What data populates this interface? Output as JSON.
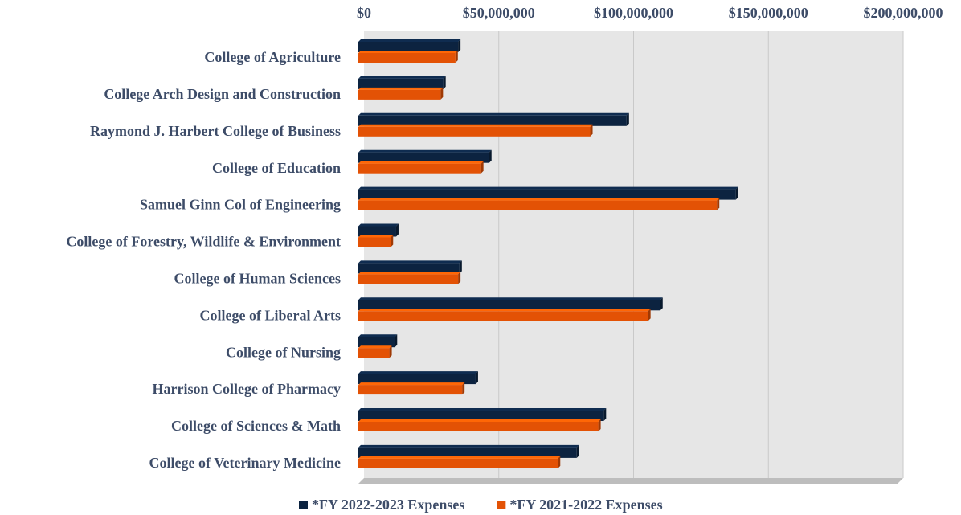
{
  "chart_data": {
    "type": "bar",
    "orientation": "horizontal",
    "categories": [
      "College of Agriculture",
      "College Arch Design and Construction",
      "Raymond J. Harbert College of Business",
      "College of Education",
      "Samuel Ginn Col of Engineering",
      "College of Forestry, Wildlife & Environment",
      "College of Human Sciences",
      "College of Liberal Arts",
      "College of Nursing",
      "Harrison College of Pharmacy",
      "College of Sciences & Math",
      "College of Veterinary Medicine"
    ],
    "series": [
      {
        "name": "*FY 2022-2023 Expenses",
        "color": "#0c2340",
        "values": [
          37000000,
          31500000,
          99500000,
          48500000,
          140000000,
          14000000,
          37500000,
          112000000,
          13500000,
          43500000,
          91000000,
          81000000
        ]
      },
      {
        "name": "*FY 2021-2022 Expenses",
        "color": "#e35205",
        "values": [
          36000000,
          30500000,
          86000000,
          45500000,
          133000000,
          12000000,
          37000000,
          107500000,
          11500000,
          38500000,
          89000000,
          74000000
        ]
      }
    ],
    "xlim": [
      0,
      200000000
    ],
    "xticks": [
      {
        "value": 0,
        "label": "$0"
      },
      {
        "value": 50000000,
        "label": "$50,000,000"
      },
      {
        "value": 100000000,
        "label": "$100,000,000"
      },
      {
        "value": 150000000,
        "label": "$150,000,000"
      },
      {
        "value": 200000000,
        "label": "$200,000,000"
      }
    ],
    "grid": true,
    "legend": "bottom"
  }
}
